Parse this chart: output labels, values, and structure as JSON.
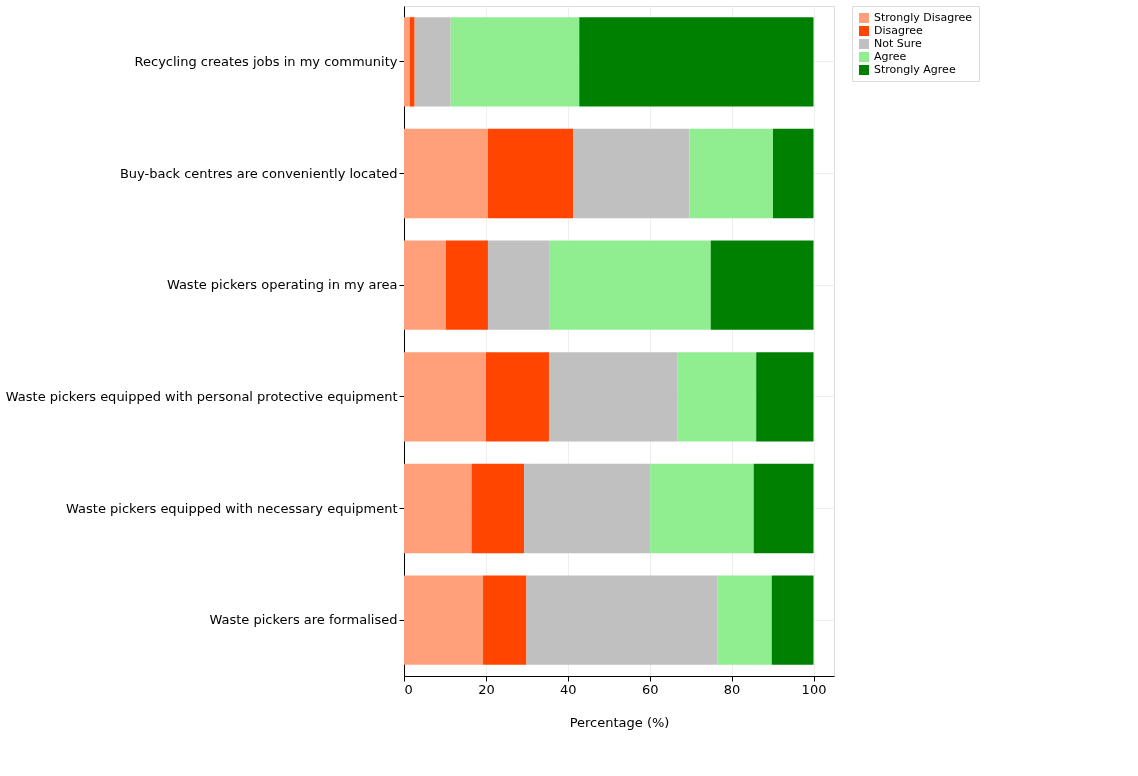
{
  "chart_data": {
    "type": "bar",
    "orientation": "horizontal",
    "stacked": true,
    "categories": [
      "Recycling creates jobs in my community",
      "Buy-back centres are conveniently located",
      "Waste pickers operating in my area",
      "Waste pickers equipped with personal protective equipment",
      "Waste pickers equipped with necessary equipment",
      "Waste pickers are formalised"
    ],
    "series": [
      {
        "name": "Strongly Disagree",
        "color": "#ffa07a",
        "values": [
          1.4,
          20.5,
          10.2,
          20.0,
          16.5,
          19.3
        ]
      },
      {
        "name": "Disagree",
        "color": "#ff4500",
        "values": [
          1.2,
          20.8,
          10.3,
          15.4,
          12.8,
          10.6
        ]
      },
      {
        "name": "Not Sure",
        "color": "#c0c0c0",
        "values": [
          8.8,
          28.4,
          15.1,
          31.3,
          30.8,
          46.7
        ]
      },
      {
        "name": "Agree",
        "color": "#90ee90",
        "values": [
          31.4,
          20.4,
          39.3,
          19.3,
          25.3,
          13.2
        ]
      },
      {
        "name": "Strongly Agree",
        "color": "#008000",
        "values": [
          57.2,
          9.9,
          25.1,
          14.0,
          14.6,
          10.2
        ]
      }
    ],
    "xlabel": "Percentage (%)",
    "xlim": [
      0,
      105
    ],
    "xticks": [
      0,
      20,
      40,
      60,
      80,
      100
    ],
    "grid": true,
    "legend": "top right"
  }
}
